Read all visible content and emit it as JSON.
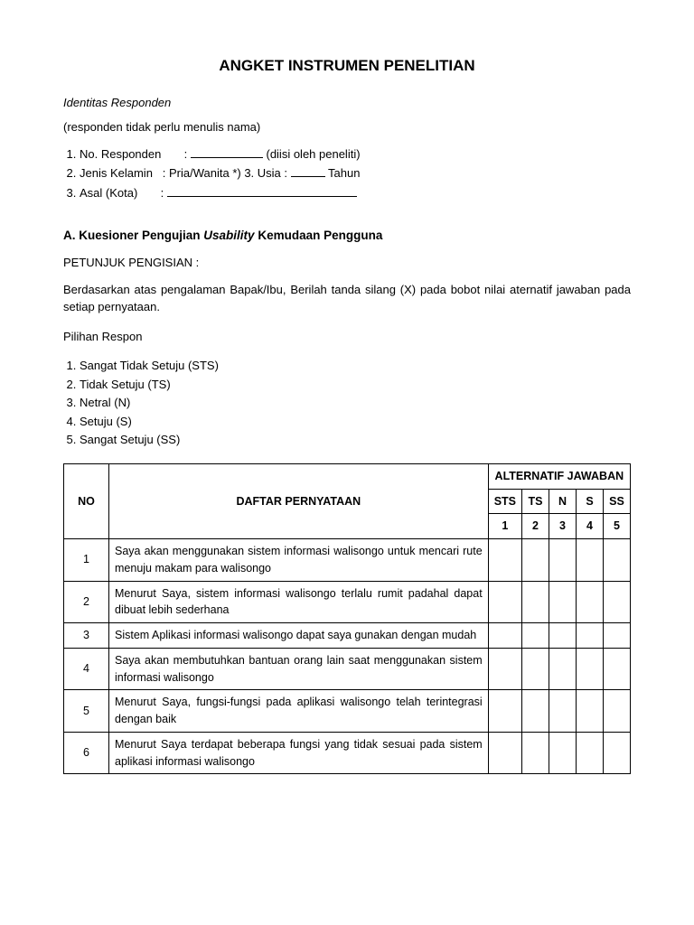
{
  "title": "ANGKET INSTRUMEN PENELITIAN",
  "identity": {
    "heading": "Identitas Responden",
    "note": "(responden tidak perlu menulis nama)",
    "line1_a": "No. Responden",
    "line1_b": "(diisi oleh peneliti)",
    "line2_a": "Jenis Kelamin",
    "line2_b": "Pria/Wanita *) 3. Usia :",
    "line2_c": "Tahun",
    "line3_a": "Asal (Kota)"
  },
  "sectionA": {
    "heading_a": "A. Kuesioner Pengujian ",
    "heading_italic": "Usability",
    "heading_b": " Kemudaan Pengguna",
    "petunjuk": "PETUNJUK PENGISIAN :",
    "instruction": "Berdasarkan atas pengalaman Bapak/Ibu, Berilah tanda silang (X) pada bobot nilai aternatif jawaban pada setiap pernyataan.",
    "pilihan_label": "Pilihan Respon",
    "options": [
      "Sangat Tidak Setuju (STS)",
      "Tidak Setuju (TS)",
      "Netral (N)",
      "Setuju (S)",
      "Sangat Setuju (SS)"
    ]
  },
  "table": {
    "headers": {
      "no": "NO",
      "daftar": "DAFTAR PERNYATAAN",
      "alternatif": "ALTERNATIF JAWABAN",
      "sts": "STS",
      "ts": "TS",
      "n": "N",
      "s": "S",
      "ss": "SS",
      "n1": "1",
      "n2": "2",
      "n3": "3",
      "n4": "4",
      "n5": "5"
    },
    "rows": [
      {
        "no": "1",
        "stmt": "Saya akan menggunakan sistem informasi walisongo untuk mencari rute menuju makam para walisongo"
      },
      {
        "no": "2",
        "stmt": "Menurut Saya, sistem informasi walisongo terlalu rumit padahal dapat dibuat lebih sederhana"
      },
      {
        "no": "3",
        "stmt": "Sistem Aplikasi informasi walisongo dapat saya gunakan dengan mudah"
      },
      {
        "no": "4",
        "stmt": "Saya akan membutuhkan bantuan orang lain saat menggunakan sistem informasi walisongo"
      },
      {
        "no": "5",
        "stmt": "Menurut Saya, fungsi-fungsi pada aplikasi walisongo telah terintegrasi dengan baik"
      },
      {
        "no": "6",
        "stmt": "Menurut Saya terdapat beberapa fungsi yang tidak sesuai pada sistem aplikasi informasi walisongo"
      }
    ]
  }
}
